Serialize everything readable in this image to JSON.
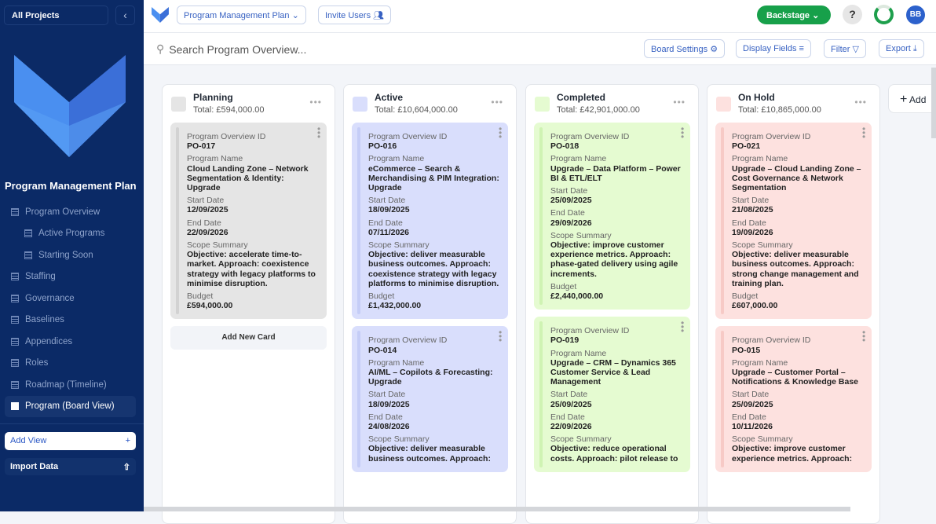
{
  "sidebar": {
    "all_projects": "All Projects",
    "title": "Program Management Plan",
    "items": [
      {
        "label": "Program Overview",
        "sub": false
      },
      {
        "label": "Active Programs",
        "sub": true
      },
      {
        "label": "Starting Soon",
        "sub": true
      },
      {
        "label": "Staffing",
        "sub": false
      },
      {
        "label": "Governance",
        "sub": false
      },
      {
        "label": "Baselines",
        "sub": false
      },
      {
        "label": "Appendices",
        "sub": false
      },
      {
        "label": "Roles",
        "sub": false
      },
      {
        "label": "Roadmap (Timeline)",
        "sub": false
      },
      {
        "label": "Program (Board View)",
        "sub": false,
        "active": true
      }
    ],
    "add_view": "Add View",
    "import_data": "Import Data"
  },
  "topbar": {
    "project": "Program Management Plan",
    "invite": "Invite Users",
    "backstage": "Backstage",
    "help": "?",
    "avatar": "BB"
  },
  "toolbar": {
    "search_placeholder": "Search Program Overview...",
    "board_settings": "Board Settings",
    "display_fields": "Display Fields",
    "filter": "Filter",
    "export": "Export"
  },
  "labels": {
    "id": "Program Overview ID",
    "name": "Program Name",
    "start": "Start Date",
    "end": "End Date",
    "scope": "Scope Summary",
    "budget": "Budget"
  },
  "add_card": "Add New Card",
  "add_column": "Add",
  "columns": [
    {
      "title": "Planning",
      "total": "Total: £594,000.00",
      "color": "#e5e5e5",
      "stripe": "#d2d2d2",
      "cards": [
        {
          "id": "PO-017",
          "name": "Cloud Landing Zone – Network Segmentation & Identity: Upgrade",
          "start": "12/09/2025",
          "end": "22/09/2026",
          "scope": "Objective: accelerate time-to-market. Approach: coexistence strategy with legacy platforms to minimise disruption.",
          "budget": "£594,000.00"
        }
      ]
    },
    {
      "title": "Active",
      "total": "Total: £10,604,000.00",
      "color": "#d9defc",
      "stripe": "#c5cdf7",
      "cards": [
        {
          "id": "PO-016",
          "name": "eCommerce – Search & Merchandising & PIM Integration: Upgrade",
          "start": "18/09/2025",
          "end": "07/11/2026",
          "scope": "Objective: deliver measurable business outcomes. Approach: coexistence strategy with legacy platforms to minimise disruption.",
          "budget": "£1,432,000.00"
        },
        {
          "id": "PO-014",
          "name": "AI/ML – Copilots & Forecasting: Upgrade",
          "start": "18/09/2025",
          "end": "24/08/2026",
          "scope": "Objective: deliver measurable business outcomes. Approach:",
          "budget": ""
        }
      ]
    },
    {
      "title": "Completed",
      "total": "Total: £42,901,000.00",
      "color": "#e5fbd1",
      "stripe": "#cff3b3",
      "cards": [
        {
          "id": "PO-018",
          "name": "Upgrade – Data Platform – Power BI & ETL/ELT",
          "start": "25/09/2025",
          "end": "29/09/2026",
          "scope": "Objective: improve customer experience metrics. Approach: phase-gated delivery using agile increments.",
          "budget": "£2,440,000.00"
        },
        {
          "id": "PO-019",
          "name": "Upgrade – CRM – Dynamics 365 Customer Service & Lead Management",
          "start": "25/09/2025",
          "end": "22/09/2026",
          "scope": "Objective: reduce operational costs. Approach: pilot release to",
          "budget": ""
        }
      ]
    },
    {
      "title": "On Hold",
      "total": "Total: £10,865,000.00",
      "color": "#fde1df",
      "stripe": "#f7cac6",
      "cards": [
        {
          "id": "PO-021",
          "name": "Upgrade – Cloud Landing Zone – Cost Governance & Network Segmentation",
          "start": "21/08/2025",
          "end": "19/09/2026",
          "scope": "Objective: deliver measurable business outcomes. Approach: strong change management and training plan.",
          "budget": "£607,000.00"
        },
        {
          "id": "PO-015",
          "name": "Upgrade – Customer Portal – Notifications & Knowledge Base",
          "start": "25/09/2025",
          "end": "10/11/2026",
          "scope": "Objective: improve customer experience metrics. Approach:",
          "budget": ""
        }
      ]
    }
  ]
}
